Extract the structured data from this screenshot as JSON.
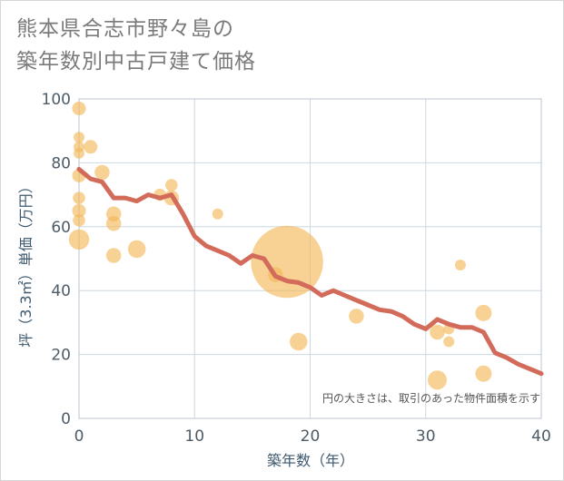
{
  "chart_data": {
    "type": "scatter",
    "title_lines": [
      "熊本県合志市野々島の",
      "築年数別中古戸建て価格"
    ],
    "xlabel": "築年数（年）",
    "ylabel": "坪（3.3㎡）単価（万円）",
    "xlim": [
      0,
      40
    ],
    "ylim": [
      0,
      100
    ],
    "x_ticks": [
      "0",
      "10",
      "20",
      "30",
      "40"
    ],
    "y_ticks": [
      "0",
      "20",
      "40",
      "60",
      "80",
      "100"
    ],
    "grid": true,
    "note": "円の大きさは、取引のあった物件面積を示す",
    "colors": {
      "bubble": "#f5b85a",
      "line": "#d36b5b",
      "grid": "#cdd8e0",
      "plot_border": "#b9c6cf"
    },
    "scatter": [
      {
        "x": 0,
        "y": 97,
        "size": 1
      },
      {
        "x": 0,
        "y": 88,
        "size": 0.8
      },
      {
        "x": 0,
        "y": 85,
        "size": 0.8
      },
      {
        "x": 0,
        "y": 83,
        "size": 0.8
      },
      {
        "x": 0,
        "y": 76,
        "size": 1
      },
      {
        "x": 0,
        "y": 69,
        "size": 0.9
      },
      {
        "x": 0,
        "y": 65,
        "size": 1
      },
      {
        "x": 0,
        "y": 62,
        "size": 0.9
      },
      {
        "x": 0,
        "y": 56,
        "size": 1.5
      },
      {
        "x": 1,
        "y": 85,
        "size": 1
      },
      {
        "x": 2,
        "y": 77,
        "size": 1.1
      },
      {
        "x": 3,
        "y": 64,
        "size": 1.1
      },
      {
        "x": 3,
        "y": 61,
        "size": 1.1
      },
      {
        "x": 3,
        "y": 51,
        "size": 1.1
      },
      {
        "x": 5,
        "y": 53,
        "size": 1.3
      },
      {
        "x": 7,
        "y": 70,
        "size": 0.9
      },
      {
        "x": 8,
        "y": 73,
        "size": 0.9
      },
      {
        "x": 8,
        "y": 69,
        "size": 1.1
      },
      {
        "x": 12,
        "y": 64,
        "size": 0.8
      },
      {
        "x": 17,
        "y": 45,
        "size": 1.1
      },
      {
        "x": 18,
        "y": 49,
        "size": 5.3
      },
      {
        "x": 19,
        "y": 24,
        "size": 1.3
      },
      {
        "x": 24,
        "y": 32,
        "size": 1.1
      },
      {
        "x": 31,
        "y": 27,
        "size": 1.1
      },
      {
        "x": 31,
        "y": 12,
        "size": 1.4
      },
      {
        "x": 32,
        "y": 28,
        "size": 0.8
      },
      {
        "x": 32,
        "y": 24,
        "size": 0.8
      },
      {
        "x": 33,
        "y": 48,
        "size": 0.8
      },
      {
        "x": 35,
        "y": 33,
        "size": 1.2
      },
      {
        "x": 35,
        "y": 14,
        "size": 1.2
      }
    ],
    "trend": {
      "x": [
        0,
        1,
        2,
        3,
        4,
        5,
        6,
        7,
        8,
        9,
        10,
        11,
        12,
        13,
        14,
        15,
        16,
        17,
        18,
        19,
        20,
        21,
        22,
        23,
        24,
        25,
        26,
        27,
        28,
        29,
        30,
        31,
        32,
        33,
        34,
        35,
        36,
        37,
        38,
        39,
        40
      ],
      "y": [
        78,
        75,
        74,
        69,
        69,
        68,
        70,
        69,
        70,
        64,
        57,
        54,
        52.5,
        51,
        48.5,
        51,
        50,
        44.5,
        43,
        42.5,
        41,
        38.5,
        40,
        38.5,
        37,
        35.5,
        34,
        33.5,
        32,
        29.5,
        28,
        31,
        29.5,
        28.5,
        28.5,
        27,
        20.5,
        19,
        17,
        15.5,
        14
      ]
    }
  }
}
